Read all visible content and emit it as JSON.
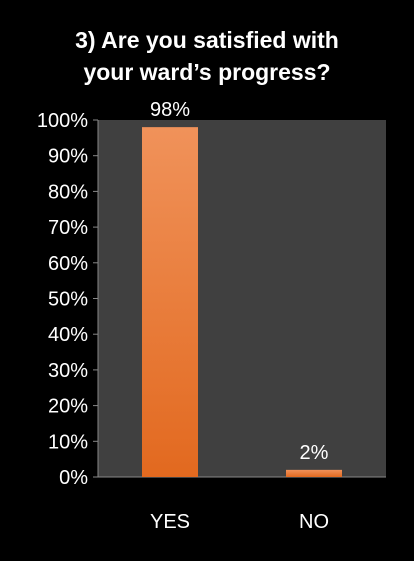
{
  "chart_data": {
    "type": "bar",
    "title_lines": [
      "3) Are you satisfied with",
      "your ward’s progress?"
    ],
    "categories": [
      "YES",
      "NO"
    ],
    "values": [
      98,
      2
    ],
    "data_labels": [
      "98%",
      "2%"
    ],
    "y_ticks": [
      "0%",
      "10%",
      "20%",
      "30%",
      "40%",
      "50%",
      "60%",
      "70%",
      "80%",
      "90%",
      "100%"
    ],
    "ylim": [
      0,
      100
    ],
    "xlabel": "",
    "ylabel": "",
    "grid": false,
    "legend": "none",
    "colors": {
      "background": "#000000",
      "plot_area": "#404040",
      "bar_top": "#f0925a",
      "bar_bottom": "#e2691f",
      "text": "#ffffff",
      "axis": "#888888"
    }
  }
}
